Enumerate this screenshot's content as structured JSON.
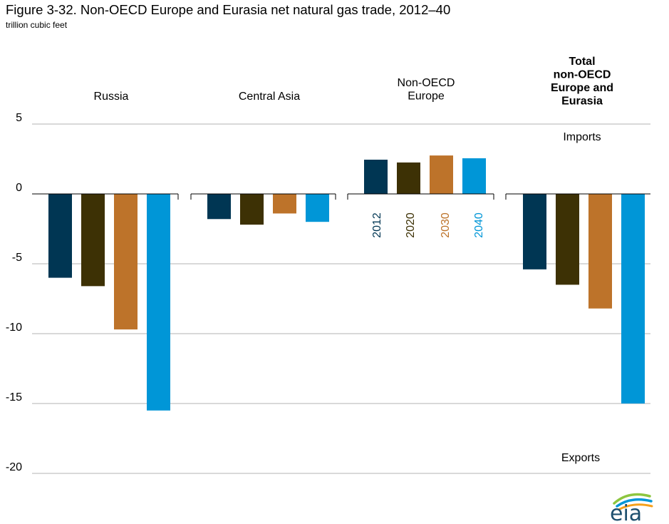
{
  "title": "Figure 3-32. Non-OECD Europe and Eurasia net natural gas trade, 2012–40",
  "unit": "trillion cubic feet",
  "colors": {
    "2012": "#003653",
    "2020": "#3d3105",
    "2030": "#bd732a",
    "2040": "#0096d7",
    "grid": "#b3b3b3",
    "zero_line": "#000000"
  },
  "chart_data": {
    "type": "bar",
    "title": "Figure 3-32. Non-OECD Europe and Eurasia net natural gas trade, 2012–40",
    "ylabel": "trillion cubic feet",
    "ylim": [
      -20,
      5
    ],
    "yticks": [
      5,
      0,
      -5,
      -10,
      -15,
      -20
    ],
    "grid": true,
    "categories": [
      [
        "Russia"
      ],
      [
        "Central Asia"
      ],
      [
        "Non-OECD",
        "Europe"
      ],
      [
        "Total",
        "non-OECD",
        "Europe and",
        "Eurasia"
      ]
    ],
    "series": [
      {
        "name": "2012",
        "values": [
          -6.0,
          -1.8,
          2.45,
          -5.4
        ]
      },
      {
        "name": "2020",
        "values": [
          -6.6,
          -2.2,
          2.25,
          -6.5
        ]
      },
      {
        "name": "2030",
        "values": [
          -9.7,
          -1.4,
          2.75,
          -8.2
        ]
      },
      {
        "name": "2040",
        "values": [
          -15.5,
          -2.0,
          2.55,
          -15.0
        ]
      }
    ],
    "annotations": [
      "Imports",
      "Exports"
    ],
    "legend": "inline-vertical-labels-under-non-oecd-europe"
  },
  "logo_text": "eia"
}
